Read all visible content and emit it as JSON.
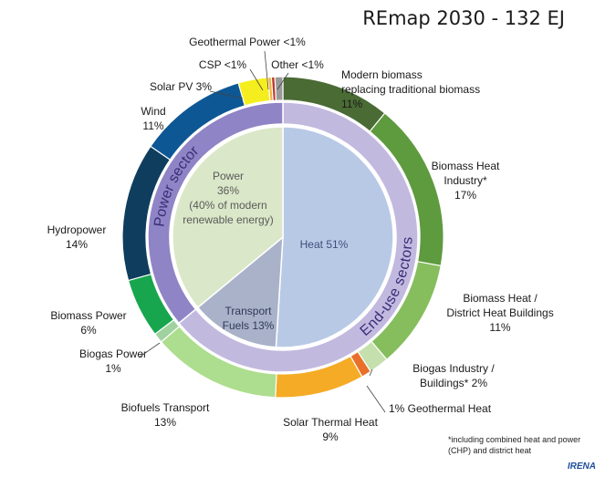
{
  "title": "REmap 2030 - 132 EJ",
  "footnote": "*including combined heat and power (CHP) and district heat",
  "brand": "IRENA",
  "chart_data": {
    "type": "pie",
    "total": "132 EJ",
    "inner": {
      "slices": [
        {
          "name": "Heat",
          "value": 51,
          "label": [
            "Heat 51%"
          ],
          "color": "#b8c9e6",
          "text_color": "#3e4f7a"
        },
        {
          "name": "Transport Fuels",
          "value": 13,
          "label": [
            "Transport",
            "Fuels 13%"
          ],
          "color": "#a9b2c9",
          "text_color": "#2f3a55"
        },
        {
          "name": "Power",
          "value": 36,
          "label": [
            "Power",
            "36%",
            "(40% of modern",
            "renewable energy)"
          ],
          "color": "#dae7c8",
          "text_color": "#5a5a5a"
        }
      ]
    },
    "sectors": [
      {
        "name": "End-use sectors",
        "value": 64,
        "color": "#c2b9df"
      },
      {
        "name": "Power sector",
        "value": 36,
        "color": "#8f84c5"
      }
    ],
    "outer": {
      "slices": [
        {
          "name": "Modern biomass replacing traditional biomass",
          "value": 11,
          "color": "#4a6b34",
          "label": [
            "Modern biomass",
            "replacing traditional biomass",
            "11%"
          ]
        },
        {
          "name": "Biomass Heat Industry*",
          "value": 17,
          "color": "#5e9a3e",
          "label": [
            "Biomass Heat",
            "Industry*",
            "17%"
          ]
        },
        {
          "name": "Biomass Heat / District Heat Buildings",
          "value": 11,
          "color": "#86bd5d",
          "label": [
            "Biomass Heat /",
            "District Heat Buildings",
            "11%"
          ]
        },
        {
          "name": "Biogas Industry / Buildings*",
          "value": 2,
          "color": "#c5e0ac",
          "label": [
            "Biogas Industry /",
            "Buildings* 2%"
          ]
        },
        {
          "name": "Geothermal Heat",
          "value": 1,
          "color": "#e8702a",
          "label": [
            "1% Geothermal Heat"
          ]
        },
        {
          "name": "Solar Thermal Heat",
          "value": 9,
          "color": "#f5ab25",
          "label": [
            "Solar Thermal Heat",
            "9%"
          ]
        },
        {
          "name": "Biofuels Transport",
          "value": 13,
          "color": "#addd8e",
          "label": [
            "Biofuels Transport",
            "13%"
          ]
        },
        {
          "name": "Biogas Power",
          "value": 1,
          "color": "#9fd29f",
          "label": [
            "Biogas Power",
            "1%"
          ]
        },
        {
          "name": "Biomass Power",
          "value": 6,
          "color": "#17a64e",
          "label": [
            "Biomass Power",
            "6%"
          ]
        },
        {
          "name": "Hydropower",
          "value": 14,
          "color": "#0f3d5e",
          "label": [
            "Hydropower",
            "14%"
          ]
        },
        {
          "name": "Wind",
          "value": 11,
          "color": "#0d5795",
          "label": [
            "Wind",
            "11%"
          ]
        },
        {
          "name": "Solar PV",
          "value": 3,
          "color": "#f5ee1e",
          "label": [
            "Solar PV 3%"
          ]
        },
        {
          "name": "CSP",
          "value": 0.35,
          "color": "#f6b43c",
          "label": [
            "CSP <1%"
          ]
        },
        {
          "name": "Geothermal Power",
          "value": 0.35,
          "color": "#c0392b",
          "label": [
            "Geothermal Power <1%"
          ]
        },
        {
          "name": "Other",
          "value": 0.8,
          "color": "#9a9a9a",
          "label": [
            "Other <1%"
          ]
        }
      ]
    }
  }
}
